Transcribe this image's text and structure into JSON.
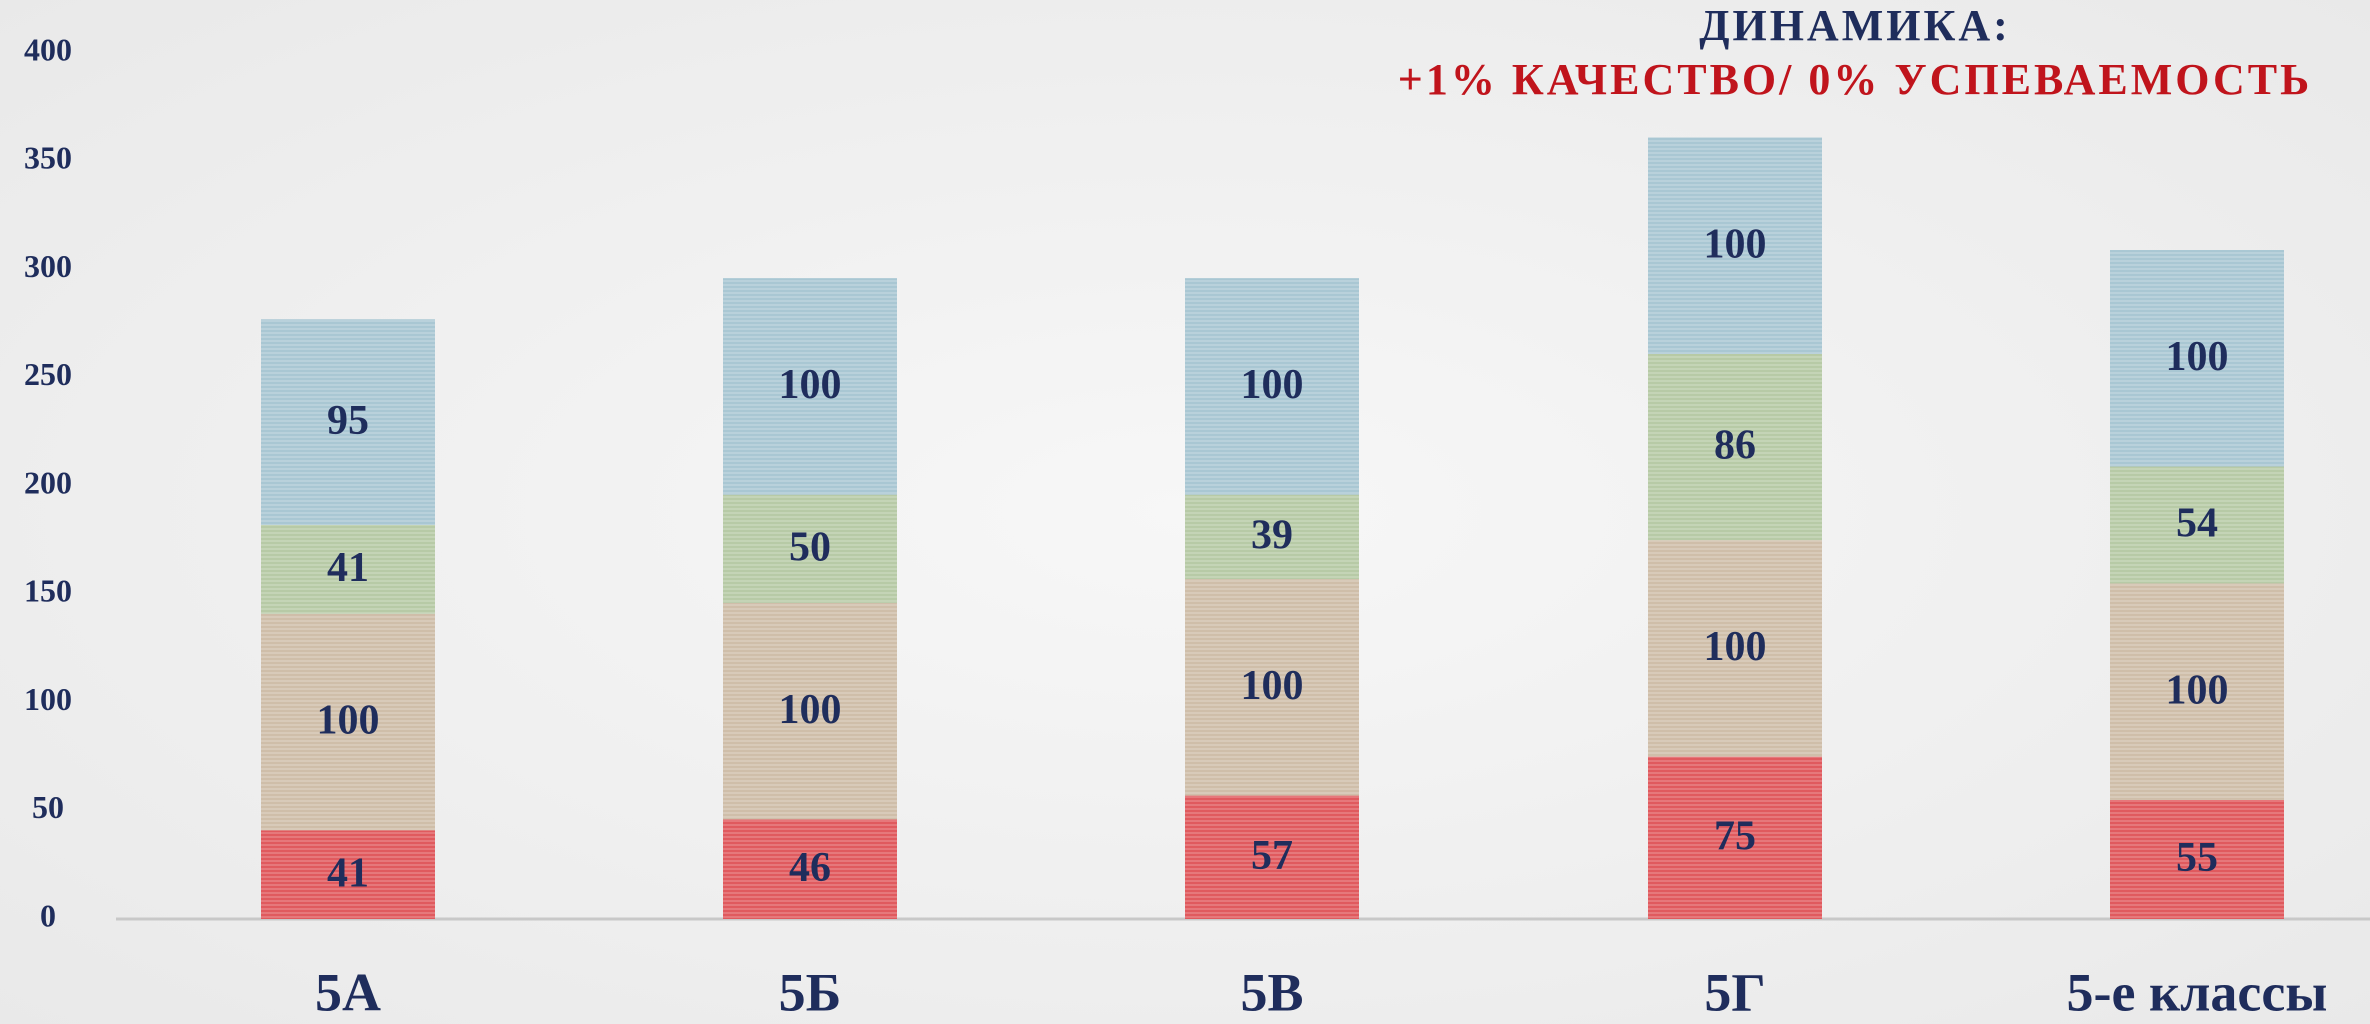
{
  "chart_data": {
    "type": "stacked_bar",
    "title": [
      "ДИНАМИКА:",
      "+1% КАЧЕСТВО/ 0% УСПЕВАЕМОСТЬ"
    ],
    "categories": [
      "5А",
      "5Б",
      "5В",
      "5Г",
      "5-е классы"
    ],
    "series": [
      {
        "color": "#e05a5e",
        "values": [
          41,
          46,
          57,
          75,
          55
        ]
      },
      {
        "color": "#cfbea9",
        "values": [
          100,
          100,
          100,
          100,
          100
        ]
      },
      {
        "color": "#b7caa6",
        "values": [
          41,
          50,
          39,
          86,
          54
        ]
      },
      {
        "color": "#a9c7d3",
        "values": [
          95,
          100,
          100,
          100,
          100
        ]
      }
    ],
    "ylim": [
      0,
      400
    ],
    "yticks": [
      0,
      50,
      100,
      150,
      200,
      250,
      300,
      350,
      400
    ]
  }
}
